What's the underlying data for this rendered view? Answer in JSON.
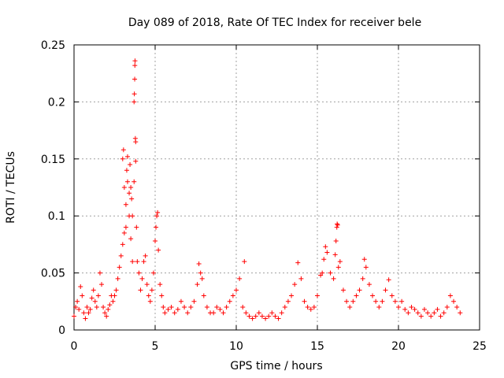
{
  "chart_data": {
    "type": "scatter",
    "title": "Day 089 of 2018, Rate Of TEC Index for receiver bele",
    "xlabel": "GPS time / hours",
    "ylabel": "ROTI / TECUs",
    "xlim": [
      0,
      25
    ],
    "ylim": [
      0,
      0.25
    ],
    "xticks": [
      0,
      5,
      10,
      15,
      20,
      25
    ],
    "yticks": [
      0,
      0.05,
      0.1,
      0.15,
      0.2,
      0.25
    ],
    "xtick_labels": [
      "0",
      "5",
      "10",
      "15",
      "20",
      "25"
    ],
    "ytick_labels": [
      "0",
      "0.05",
      "0.1",
      "0.15",
      "0.2",
      "0.25"
    ],
    "grid": true,
    "marker": "+",
    "color": "#ff0000",
    "series": [
      {
        "name": "ROTI",
        "points": [
          [
            0.0,
            0.012
          ],
          [
            0.1,
            0.02
          ],
          [
            0.2,
            0.025
          ],
          [
            0.3,
            0.018
          ],
          [
            0.4,
            0.038
          ],
          [
            0.5,
            0.03
          ],
          [
            0.6,
            0.015
          ],
          [
            0.7,
            0.01
          ],
          [
            0.8,
            0.02
          ],
          [
            0.9,
            0.015
          ],
          [
            1.0,
            0.018
          ],
          [
            1.1,
            0.028
          ],
          [
            1.2,
            0.035
          ],
          [
            1.3,
            0.025
          ],
          [
            1.4,
            0.02
          ],
          [
            1.5,
            0.03
          ],
          [
            1.6,
            0.05
          ],
          [
            1.7,
            0.04
          ],
          [
            1.8,
            0.02
          ],
          [
            1.9,
            0.015
          ],
          [
            2.0,
            0.012
          ],
          [
            2.1,
            0.018
          ],
          [
            2.2,
            0.022
          ],
          [
            2.3,
            0.03
          ],
          [
            2.4,
            0.025
          ],
          [
            2.5,
            0.03
          ],
          [
            2.6,
            0.035
          ],
          [
            2.7,
            0.045
          ],
          [
            2.8,
            0.055
          ],
          [
            2.9,
            0.065
          ],
          [
            3.0,
            0.075
          ],
          [
            3.0,
            0.15
          ],
          [
            3.05,
            0.158
          ],
          [
            3.1,
            0.125
          ],
          [
            3.1,
            0.085
          ],
          [
            3.2,
            0.09
          ],
          [
            3.2,
            0.11
          ],
          [
            3.25,
            0.14
          ],
          [
            3.3,
            0.13
          ],
          [
            3.3,
            0.152
          ],
          [
            3.4,
            0.1
          ],
          [
            3.4,
            0.12
          ],
          [
            3.45,
            0.145
          ],
          [
            3.5,
            0.08
          ],
          [
            3.5,
            0.125
          ],
          [
            3.55,
            0.115
          ],
          [
            3.6,
            0.06
          ],
          [
            3.6,
            0.1
          ],
          [
            3.7,
            0.13
          ],
          [
            3.7,
            0.2
          ],
          [
            3.72,
            0.207
          ],
          [
            3.74,
            0.22
          ],
          [
            3.75,
            0.232
          ],
          [
            3.76,
            0.236
          ],
          [
            3.78,
            0.168
          ],
          [
            3.8,
            0.165
          ],
          [
            3.8,
            0.148
          ],
          [
            3.85,
            0.09
          ],
          [
            3.9,
            0.06
          ],
          [
            4.0,
            0.05
          ],
          [
            4.1,
            0.035
          ],
          [
            4.2,
            0.045
          ],
          [
            4.3,
            0.06
          ],
          [
            4.4,
            0.065
          ],
          [
            4.5,
            0.04
          ],
          [
            4.6,
            0.03
          ],
          [
            4.7,
            0.025
          ],
          [
            4.8,
            0.035
          ],
          [
            4.9,
            0.05
          ],
          [
            5.0,
            0.078
          ],
          [
            5.05,
            0.09
          ],
          [
            5.1,
            0.1
          ],
          [
            5.15,
            0.103
          ],
          [
            5.2,
            0.07
          ],
          [
            5.3,
            0.04
          ],
          [
            5.4,
            0.03
          ],
          [
            5.5,
            0.02
          ],
          [
            5.6,
            0.015
          ],
          [
            5.8,
            0.018
          ],
          [
            6.0,
            0.02
          ],
          [
            6.2,
            0.015
          ],
          [
            6.4,
            0.018
          ],
          [
            6.6,
            0.025
          ],
          [
            6.8,
            0.02
          ],
          [
            7.0,
            0.015
          ],
          [
            7.2,
            0.02
          ],
          [
            7.4,
            0.025
          ],
          [
            7.6,
            0.04
          ],
          [
            7.7,
            0.058
          ],
          [
            7.8,
            0.05
          ],
          [
            7.9,
            0.045
          ],
          [
            8.0,
            0.03
          ],
          [
            8.2,
            0.02
          ],
          [
            8.4,
            0.015
          ],
          [
            8.6,
            0.015
          ],
          [
            8.8,
            0.02
          ],
          [
            9.0,
            0.018
          ],
          [
            9.2,
            0.015
          ],
          [
            9.4,
            0.02
          ],
          [
            9.6,
            0.025
          ],
          [
            9.8,
            0.03
          ],
          [
            10.0,
            0.035
          ],
          [
            10.2,
            0.045
          ],
          [
            10.4,
            0.02
          ],
          [
            10.5,
            0.06
          ],
          [
            10.6,
            0.015
          ],
          [
            10.8,
            0.012
          ],
          [
            11.0,
            0.01
          ],
          [
            11.2,
            0.012
          ],
          [
            11.4,
            0.015
          ],
          [
            11.6,
            0.012
          ],
          [
            11.8,
            0.01
          ],
          [
            12.0,
            0.012
          ],
          [
            12.2,
            0.015
          ],
          [
            12.4,
            0.012
          ],
          [
            12.6,
            0.01
          ],
          [
            12.8,
            0.015
          ],
          [
            13.0,
            0.02
          ],
          [
            13.2,
            0.025
          ],
          [
            13.4,
            0.03
          ],
          [
            13.6,
            0.04
          ],
          [
            13.8,
            0.059
          ],
          [
            14.0,
            0.045
          ],
          [
            14.2,
            0.025
          ],
          [
            14.4,
            0.02
          ],
          [
            14.6,
            0.018
          ],
          [
            14.8,
            0.02
          ],
          [
            15.0,
            0.03
          ],
          [
            15.2,
            0.048
          ],
          [
            15.3,
            0.05
          ],
          [
            15.4,
            0.062
          ],
          [
            15.5,
            0.073
          ],
          [
            15.6,
            0.068
          ],
          [
            15.8,
            0.05
          ],
          [
            16.0,
            0.045
          ],
          [
            16.1,
            0.066
          ],
          [
            16.15,
            0.078
          ],
          [
            16.2,
            0.09
          ],
          [
            16.22,
            0.093
          ],
          [
            16.25,
            0.092
          ],
          [
            16.3,
            0.055
          ],
          [
            16.4,
            0.06
          ],
          [
            16.6,
            0.035
          ],
          [
            16.8,
            0.025
          ],
          [
            17.0,
            0.02
          ],
          [
            17.2,
            0.025
          ],
          [
            17.4,
            0.03
          ],
          [
            17.6,
            0.035
          ],
          [
            17.8,
            0.045
          ],
          [
            17.9,
            0.062
          ],
          [
            18.0,
            0.055
          ],
          [
            18.2,
            0.04
          ],
          [
            18.4,
            0.03
          ],
          [
            18.6,
            0.025
          ],
          [
            18.8,
            0.02
          ],
          [
            19.0,
            0.025
          ],
          [
            19.2,
            0.035
          ],
          [
            19.4,
            0.044
          ],
          [
            19.6,
            0.03
          ],
          [
            19.8,
            0.025
          ],
          [
            20.0,
            0.02
          ],
          [
            20.2,
            0.025
          ],
          [
            20.4,
            0.018
          ],
          [
            20.6,
            0.015
          ],
          [
            20.8,
            0.02
          ],
          [
            21.0,
            0.018
          ],
          [
            21.2,
            0.015
          ],
          [
            21.4,
            0.012
          ],
          [
            21.6,
            0.018
          ],
          [
            21.8,
            0.015
          ],
          [
            22.0,
            0.012
          ],
          [
            22.2,
            0.015
          ],
          [
            22.4,
            0.018
          ],
          [
            22.6,
            0.012
          ],
          [
            22.8,
            0.015
          ],
          [
            23.0,
            0.02
          ],
          [
            23.2,
            0.03
          ],
          [
            23.4,
            0.025
          ],
          [
            23.6,
            0.02
          ],
          [
            23.8,
            0.015
          ]
        ]
      }
    ]
  }
}
